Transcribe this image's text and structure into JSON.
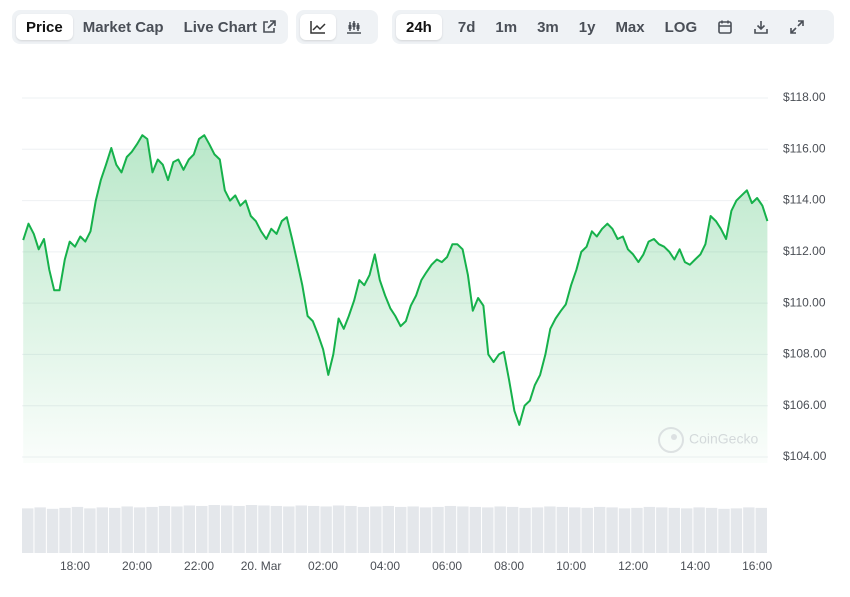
{
  "toolbar": {
    "view": [
      "Price",
      "Market Cap",
      "Live Chart"
    ],
    "range": [
      "24h",
      "7d",
      "1m",
      "3m",
      "1y",
      "Max",
      "LOG"
    ]
  },
  "watermark": "CoinGecko",
  "chart_data": {
    "type": "line",
    "color": "#16b14b",
    "x": [
      16.33,
      16.5,
      16.67,
      16.83,
      17,
      17.17,
      17.33,
      17.5,
      17.67,
      17.83,
      18,
      18.17,
      18.33,
      18.5,
      18.67,
      18.83,
      19,
      19.17,
      19.33,
      19.5,
      19.67,
      19.83,
      20,
      20.17,
      20.33,
      20.5,
      20.67,
      20.83,
      21,
      21.17,
      21.33,
      21.5,
      21.67,
      21.83,
      22,
      22.17,
      22.33,
      22.5,
      22.67,
      22.83,
      23,
      23.17,
      23.33,
      23.5,
      23.67,
      23.83,
      24,
      24.17,
      24.33,
      24.5,
      24.67,
      24.83,
      25,
      25.17,
      25.33,
      25.5,
      25.67,
      25.83,
      26,
      26.17,
      26.33,
      26.5,
      26.67,
      26.83,
      27,
      27.17,
      27.33,
      27.5,
      27.67,
      27.83,
      28,
      28.17,
      28.33,
      28.5,
      28.67,
      28.83,
      29,
      29.17,
      29.33,
      29.5,
      29.67,
      29.83,
      30,
      30.17,
      30.33,
      30.5,
      30.67,
      30.83,
      31,
      31.17,
      31.33,
      31.5,
      31.67,
      31.83,
      32,
      32.17,
      32.33,
      32.5,
      32.67,
      32.83,
      33,
      33.17,
      33.33,
      33.5,
      33.67,
      33.83,
      34,
      34.17,
      34.33,
      34.5,
      34.67,
      34.83,
      35,
      35.17,
      35.33,
      35.5,
      35.67,
      35.83,
      36,
      36.17,
      36.33,
      36.5,
      36.67,
      36.83,
      37,
      37.17,
      37.33,
      37.5,
      37.67,
      37.83,
      38,
      38.17,
      38.33,
      38.5,
      38.67,
      38.83,
      39,
      39.17,
      39.33,
      39.5,
      39.67,
      39.83,
      40,
      40.17,
      40.33
    ],
    "values": [
      112.46,
      113.1,
      112.7,
      112.1,
      112.5,
      111.3,
      110.5,
      110.5,
      111.7,
      112.4,
      112.2,
      112.6,
      112.4,
      112.8,
      114.0,
      114.8,
      115.4,
      116.05,
      115.4,
      115.1,
      115.7,
      115.9,
      116.2,
      116.55,
      116.4,
      115.1,
      115.6,
      115.4,
      114.8,
      115.5,
      115.6,
      115.2,
      115.6,
      115.8,
      116.4,
      116.55,
      116.2,
      115.8,
      115.6,
      114.4,
      114.0,
      114.2,
      113.8,
      114.0,
      113.4,
      113.2,
      112.8,
      112.5,
      112.9,
      112.7,
      113.2,
      113.35,
      112.5,
      111.6,
      110.7,
      109.5,
      109.3,
      108.8,
      108.2,
      107.2,
      108.0,
      109.4,
      109.0,
      109.5,
      110.1,
      110.9,
      110.7,
      111.1,
      111.9,
      110.9,
      110.3,
      109.8,
      109.5,
      109.1,
      109.3,
      109.9,
      110.3,
      110.9,
      111.2,
      111.5,
      111.7,
      111.6,
      111.8,
      112.3,
      112.3,
      112.1,
      111.1,
      109.7,
      110.2,
      109.9,
      108.0,
      107.7,
      108.0,
      108.1,
      107.0,
      105.8,
      105.25,
      106.0,
      106.2,
      106.8,
      107.2,
      108.0,
      109.0,
      109.4,
      109.7,
      109.95,
      110.7,
      111.3,
      112.0,
      112.2,
      112.8,
      112.6,
      112.9,
      113.1,
      112.9,
      112.5,
      112.6,
      112.1,
      111.9,
      111.6,
      111.9,
      112.4,
      112.5,
      112.3,
      112.2,
      112.0,
      111.7,
      112.1,
      111.6,
      111.5,
      111.7,
      111.9,
      112.3,
      113.4,
      113.2,
      112.9,
      112.5,
      113.6,
      114.0,
      114.2,
      114.4,
      113.9,
      114.1,
      113.8,
      113.2
    ],
    "xlim": [
      16.29,
      40.35
    ],
    "xticks": [
      {
        "value": 18,
        "label": "18:00"
      },
      {
        "value": 20,
        "label": "20:00"
      },
      {
        "value": 22,
        "label": "22:00"
      },
      {
        "value": 24,
        "label": "20. Mar"
      },
      {
        "value": 26,
        "label": "02:00"
      },
      {
        "value": 28,
        "label": "04:00"
      },
      {
        "value": 30,
        "label": "06:00"
      },
      {
        "value": 32,
        "label": "08:00"
      },
      {
        "value": 34,
        "label": "10:00"
      },
      {
        "value": 36,
        "label": "12:00"
      },
      {
        "value": 38,
        "label": "14:00"
      },
      {
        "value": 40,
        "label": "16:00"
      }
    ],
    "ylim": [
      104,
      118
    ],
    "yticks": [
      {
        "value": 104,
        "label": "$104.00"
      },
      {
        "value": 106,
        "label": "$106.00"
      },
      {
        "value": 108,
        "label": "$108.00"
      },
      {
        "value": 110,
        "label": "$110.00"
      },
      {
        "value": 112,
        "label": "$112.00"
      },
      {
        "value": 114,
        "label": "$114.00"
      },
      {
        "value": 116,
        "label": "$116.00"
      },
      {
        "value": 118,
        "label": "$118.00"
      }
    ],
    "grid": true,
    "volume": {
      "color": "#e4e7eb",
      "ylim": [
        0,
        1
      ],
      "values": [
        0.93,
        0.95,
        0.92,
        0.94,
        0.96,
        0.93,
        0.95,
        0.94,
        0.97,
        0.95,
        0.96,
        0.98,
        0.97,
        0.99,
        0.98,
        1,
        0.99,
        0.98,
        1,
        0.99,
        0.98,
        0.97,
        0.99,
        0.98,
        0.97,
        0.99,
        0.98,
        0.96,
        0.97,
        0.98,
        0.96,
        0.97,
        0.95,
        0.96,
        0.98,
        0.97,
        0.96,
        0.95,
        0.97,
        0.96,
        0.94,
        0.95,
        0.97,
        0.96,
        0.95,
        0.94,
        0.96,
        0.95,
        0.93,
        0.94,
        0.96,
        0.95,
        0.94,
        0.93,
        0.95,
        0.94,
        0.92,
        0.93,
        0.95,
        0.94
      ]
    }
  }
}
